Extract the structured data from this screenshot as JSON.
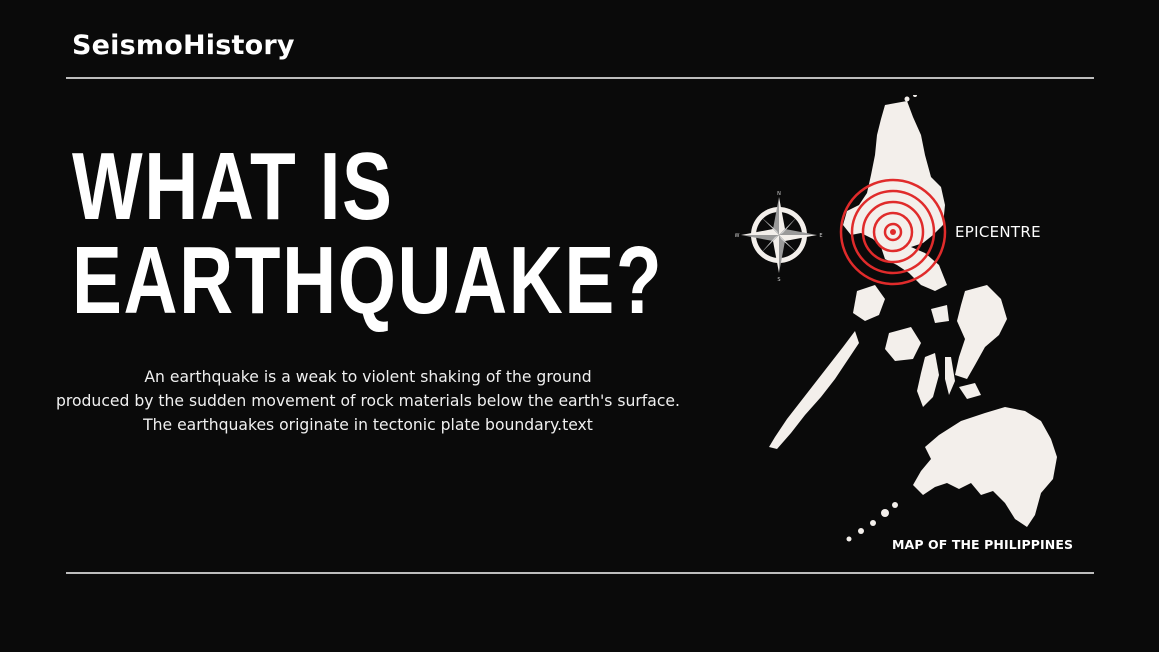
{
  "header": {
    "brand": "SeismoHistory"
  },
  "main": {
    "headline_line1": "WHAT IS",
    "headline_line2": "EARTHQUAKE?",
    "description_lines": [
      "An earthquake is a weak to violent shaking of the ground",
      "produced by the sudden movement of rock materials below the earth's surface.",
      "The earthquakes originate in tectonic plate boundary.text"
    ]
  },
  "map": {
    "epicentre_label": "EPICENTRE",
    "caption": "MAP OF THE PHILIPPINES",
    "compass_letters": {
      "n": "N",
      "s": "S",
      "e": "E",
      "w": "W"
    },
    "icons": [
      "compass-rose-icon",
      "epicentre-rings-icon",
      "philippines-map-icon"
    ],
    "colors": {
      "land": "#f3efeb",
      "rings": "#e02b2b",
      "background": "#0a0a0a"
    }
  }
}
